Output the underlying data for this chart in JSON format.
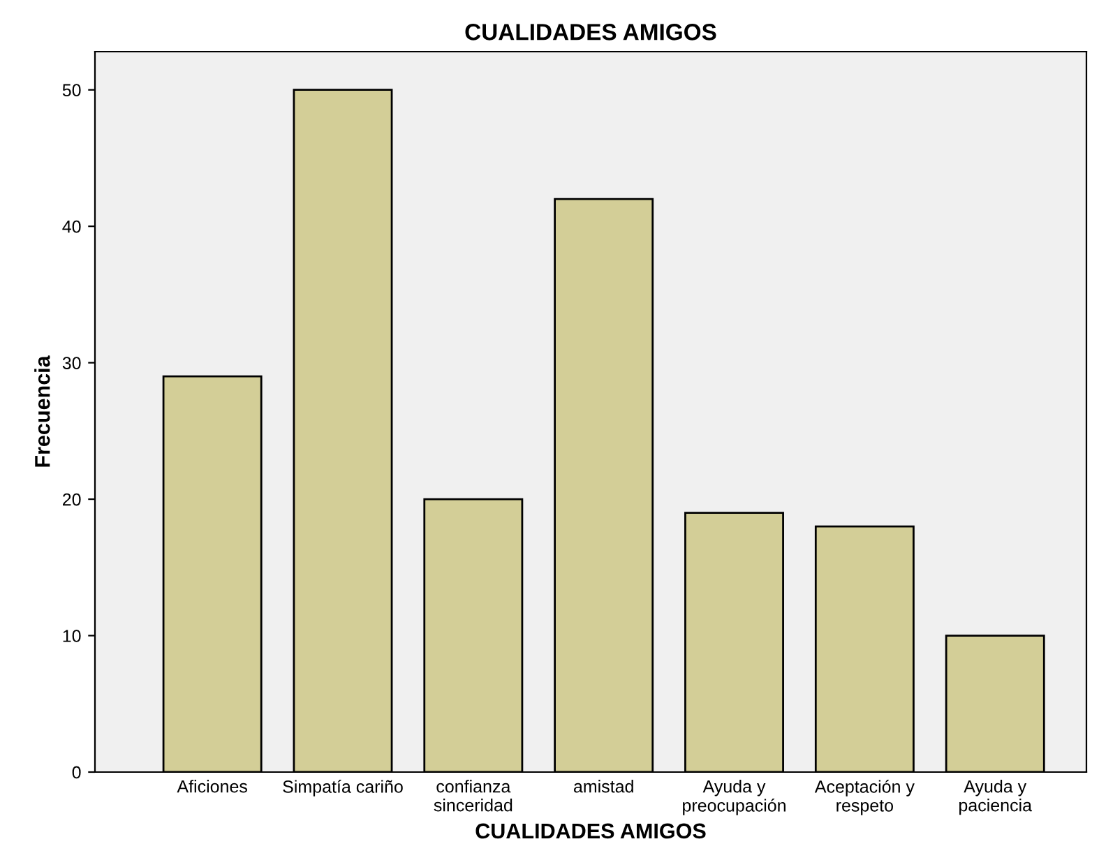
{
  "chart_data": {
    "type": "bar",
    "title": "CUALIDADES AMIGOS",
    "xlabel": "CUALIDADES AMIGOS",
    "ylabel": "Frecuencia",
    "categories": [
      "Aficiones",
      "Simpatía cariño",
      "confianza\nsinceridad",
      "amistad",
      "Ayuda y\npreocupación",
      "Aceptación y\nrespeto",
      "Ayuda y\npaciencia"
    ],
    "values": [
      29,
      50,
      20,
      42,
      19,
      18,
      10
    ],
    "color": "#d3ce97",
    "ylim": [
      0,
      52.8
    ],
    "yticks": [
      0,
      10,
      20,
      30,
      40,
      50
    ],
    "grid": false
  }
}
